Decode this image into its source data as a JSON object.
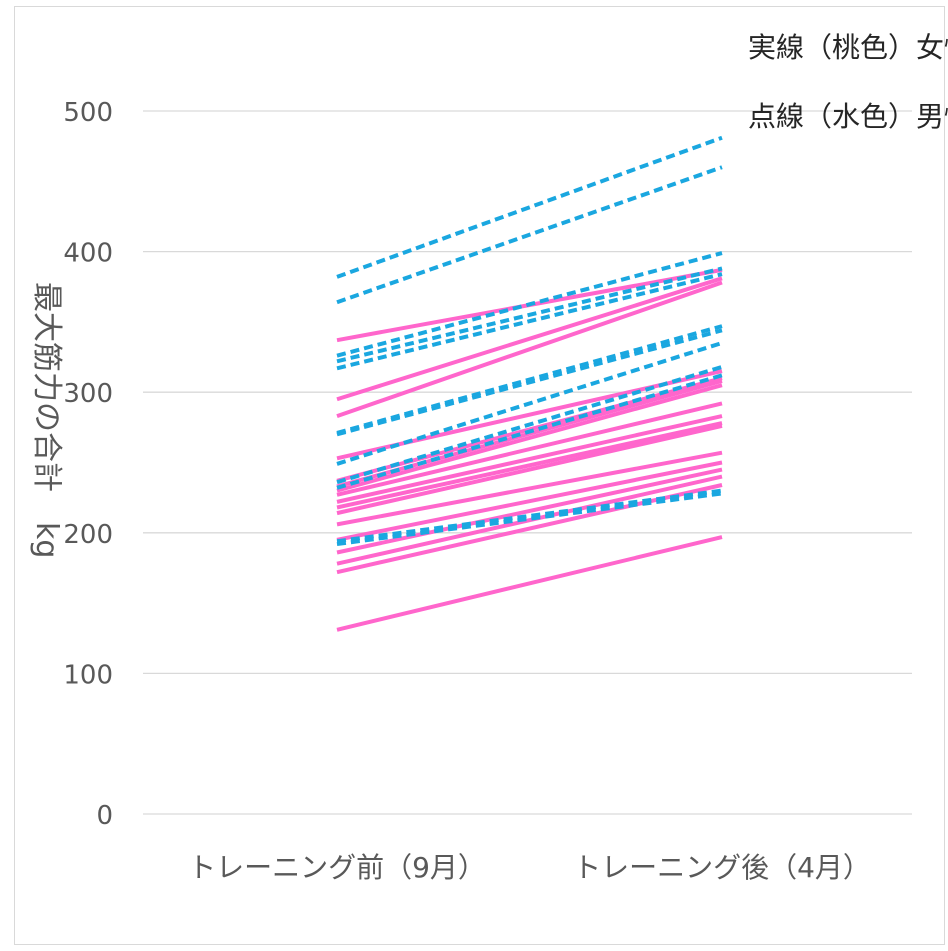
{
  "chart_data": {
    "type": "line",
    "categories": [
      "トレーニング前（9月）",
      "トレーニング後（4月）"
    ],
    "ylabel": "最大筋力の合計　kg",
    "ylim": [
      0,
      500
    ],
    "yticks": [
      0,
      100,
      200,
      300,
      400,
      500
    ],
    "grid": true,
    "legend_position": "top-right",
    "legend": {
      "female": "実線（桃色）女性",
      "male": "点線（水色）男性"
    },
    "colors": {
      "female": "#ff66cc",
      "male": "#1aa7e0"
    },
    "series": [
      {
        "group": "male",
        "values": [
          382,
          481
        ]
      },
      {
        "group": "male",
        "values": [
          364,
          460
        ]
      },
      {
        "group": "male",
        "values": [
          326,
          399
        ]
      },
      {
        "group": "male",
        "values": [
          322,
          388
        ]
      },
      {
        "group": "male",
        "values": [
          317,
          384
        ]
      },
      {
        "group": "male",
        "values": [
          271,
          347
        ]
      },
      {
        "group": "male",
        "values": [
          270,
          344
        ]
      },
      {
        "group": "male",
        "values": [
          249,
          335
        ]
      },
      {
        "group": "male",
        "values": [
          236,
          318
        ]
      },
      {
        "group": "male",
        "values": [
          232,
          312
        ]
      },
      {
        "group": "male",
        "values": [
          194,
          230
        ]
      },
      {
        "group": "male",
        "values": [
          192,
          228
        ]
      },
      {
        "group": "female",
        "values": [
          337,
          387
        ]
      },
      {
        "group": "female",
        "values": [
          295,
          381
        ]
      },
      {
        "group": "female",
        "values": [
          283,
          378
        ]
      },
      {
        "group": "female",
        "values": [
          253,
          315
        ]
      },
      {
        "group": "female",
        "values": [
          237,
          310
        ]
      },
      {
        "group": "female",
        "values": [
          233,
          308
        ]
      },
      {
        "group": "female",
        "values": [
          230,
          305
        ]
      },
      {
        "group": "female",
        "values": [
          227,
          292
        ]
      },
      {
        "group": "female",
        "values": [
          222,
          283
        ]
      },
      {
        "group": "female",
        "values": [
          218,
          278
        ]
      },
      {
        "group": "female",
        "values": [
          214,
          276
        ]
      },
      {
        "group": "female",
        "values": [
          206,
          257
        ]
      },
      {
        "group": "female",
        "values": [
          195,
          250
        ]
      },
      {
        "group": "female",
        "values": [
          186,
          245
        ]
      },
      {
        "group": "female",
        "values": [
          178,
          240
        ]
      },
      {
        "group": "female",
        "values": [
          172,
          234
        ]
      },
      {
        "group": "female",
        "values": [
          131,
          197
        ]
      }
    ]
  }
}
